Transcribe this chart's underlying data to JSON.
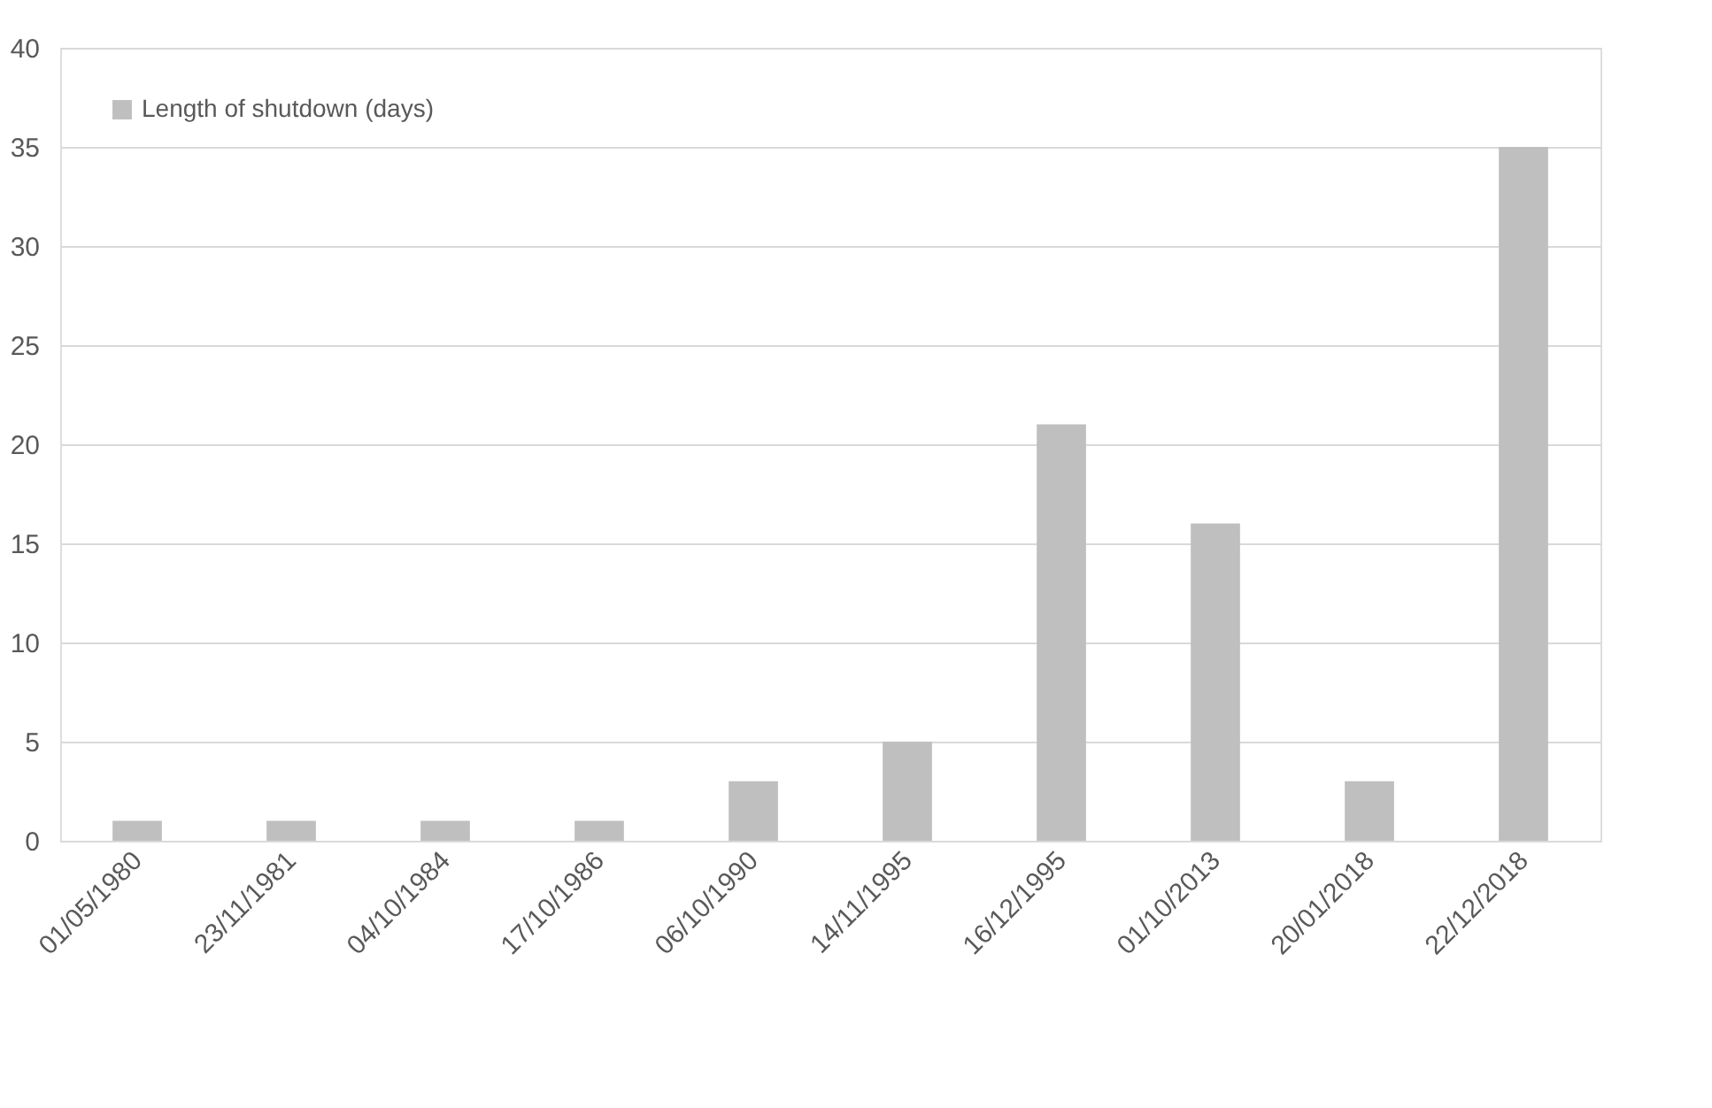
{
  "chart_data": {
    "type": "bar",
    "categories": [
      "01/05/1980",
      "23/11/1981",
      "04/10/1984",
      "17/10/1986",
      "06/10/1990",
      "14/11/1995",
      "16/12/1995",
      "01/10/2013",
      "20/01/2018",
      "22/12/2018"
    ],
    "series": [
      {
        "name": "Length of shutdown (days)",
        "color": "#bfbfbf",
        "values": [
          1,
          1,
          1,
          1,
          3,
          5,
          21,
          16,
          3,
          35
        ]
      }
    ],
    "ylim": [
      0,
      40
    ],
    "yticks": [
      0,
      5,
      10,
      15,
      20,
      25,
      30,
      35,
      40
    ],
    "grid": "y",
    "legend": "top left"
  }
}
